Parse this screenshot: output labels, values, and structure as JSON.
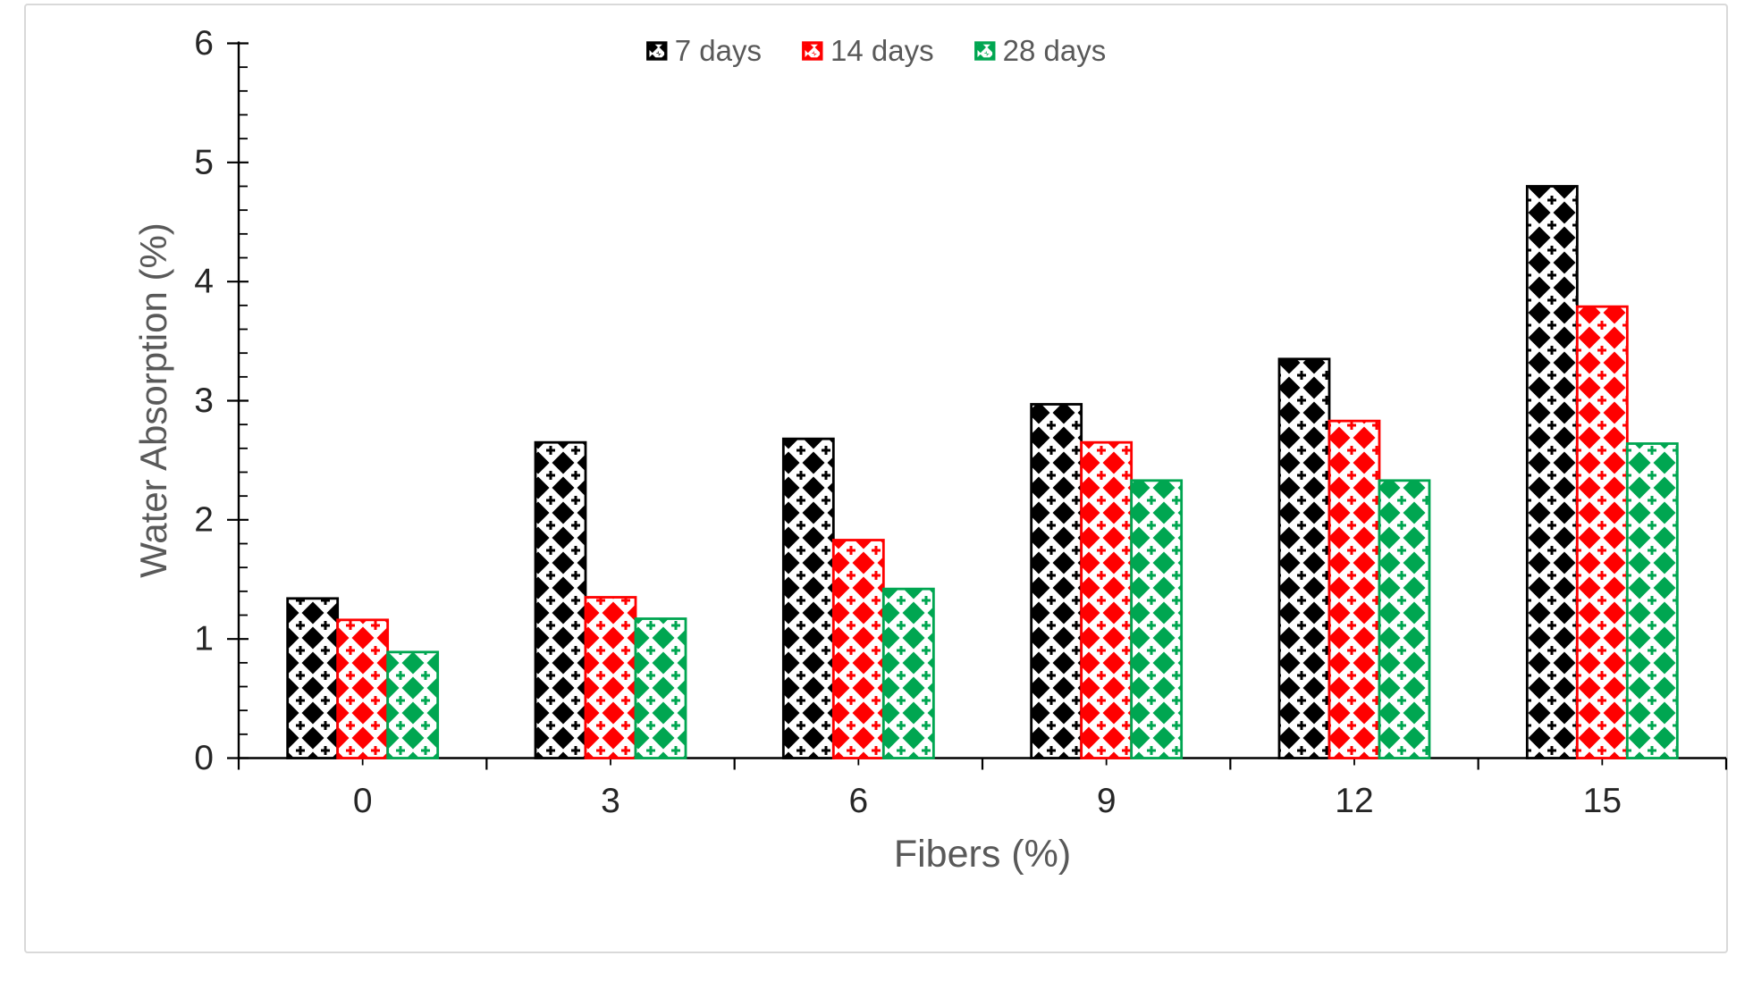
{
  "chart_data": {
    "type": "bar",
    "title": "",
    "categories": [
      "0",
      "3",
      "6",
      "9",
      "12",
      "15"
    ],
    "series": [
      {
        "name": "7 days",
        "color": "#000000",
        "values": [
          1.34,
          2.65,
          2.68,
          2.97,
          3.35,
          4.8
        ]
      },
      {
        "name": "14 days",
        "color": "#ff0000",
        "values": [
          1.16,
          1.35,
          1.83,
          2.65,
          2.83,
          3.79
        ]
      },
      {
        "name": "28 days",
        "color": "#00a651",
        "values": [
          0.89,
          1.17,
          1.42,
          2.33,
          2.33,
          2.64
        ]
      }
    ],
    "xlabel": "Fibers (%)",
    "ylabel": "Water Absorption (%)",
    "ylim": [
      0,
      6
    ],
    "y_major_step": 1,
    "y_minor_step": 0.2,
    "y_tick_labels": [
      "0",
      "1",
      "2",
      "3",
      "4",
      "5",
      "6"
    ],
    "grid": false,
    "legend_position": "top-center",
    "bar_fill_pattern": "solid-diamond-checker",
    "axis_color": "#000000",
    "tick_label_color": "#262626",
    "title_text_color": "#595959",
    "frame_border_color": "#d9d9d9"
  }
}
